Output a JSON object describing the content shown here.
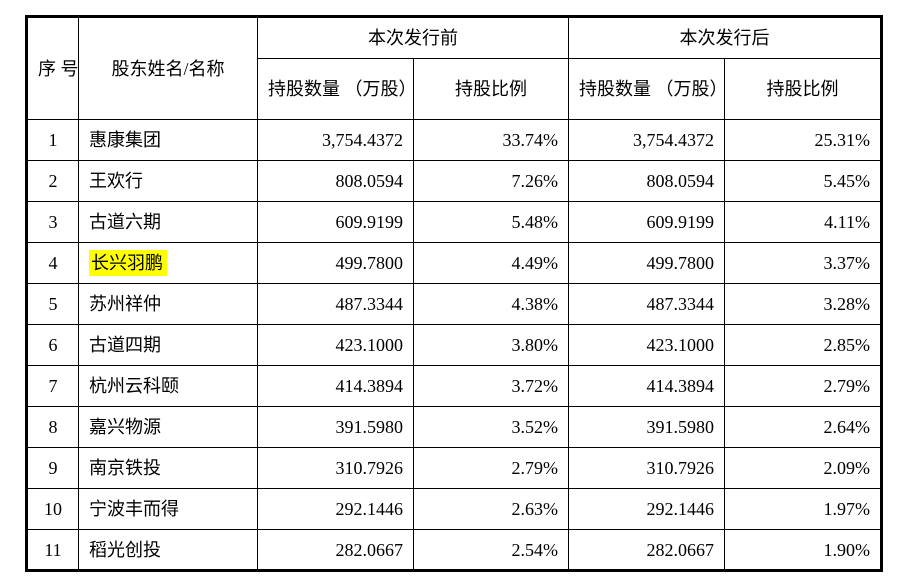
{
  "table": {
    "title_semantic": "shareholding-before-after-issuance",
    "highlight_color": "#ffff00",
    "headers": {
      "serial": "序\n号",
      "shareholder": "股东姓名/名称",
      "group_before": "本次发行前",
      "group_after": "本次发行后",
      "qty": "持股数量\n（万股）",
      "ratio": "持股比例"
    },
    "rows": [
      {
        "no": "1",
        "name": "惠康集团",
        "qty_before": "3,754.4372",
        "ratio_before": "33.74%",
        "qty_after": "3,754.4372",
        "ratio_after": "25.31%",
        "highlight": false
      },
      {
        "no": "2",
        "name": "王欢行",
        "qty_before": "808.0594",
        "ratio_before": "7.26%",
        "qty_after": "808.0594",
        "ratio_after": "5.45%",
        "highlight": false
      },
      {
        "no": "3",
        "name": "古道六期",
        "qty_before": "609.9199",
        "ratio_before": "5.48%",
        "qty_after": "609.9199",
        "ratio_after": "4.11%",
        "highlight": false
      },
      {
        "no": "4",
        "name": "长兴羽鹏",
        "qty_before": "499.7800",
        "ratio_before": "4.49%",
        "qty_after": "499.7800",
        "ratio_after": "3.37%",
        "highlight": true
      },
      {
        "no": "5",
        "name": "苏州祥仲",
        "qty_before": "487.3344",
        "ratio_before": "4.38%",
        "qty_after": "487.3344",
        "ratio_after": "3.28%",
        "highlight": false
      },
      {
        "no": "6",
        "name": "古道四期",
        "qty_before": "423.1000",
        "ratio_before": "3.80%",
        "qty_after": "423.1000",
        "ratio_after": "2.85%",
        "highlight": false
      },
      {
        "no": "7",
        "name": "杭州云科颐",
        "qty_before": "414.3894",
        "ratio_before": "3.72%",
        "qty_after": "414.3894",
        "ratio_after": "2.79%",
        "highlight": false
      },
      {
        "no": "8",
        "name": "嘉兴物源",
        "qty_before": "391.5980",
        "ratio_before": "3.52%",
        "qty_after": "391.5980",
        "ratio_after": "2.64%",
        "highlight": false
      },
      {
        "no": "9",
        "name": "南京铁投",
        "qty_before": "310.7926",
        "ratio_before": "2.79%",
        "qty_after": "310.7926",
        "ratio_after": "2.09%",
        "highlight": false
      },
      {
        "no": "10",
        "name": "宁波丰而得",
        "qty_before": "292.1446",
        "ratio_before": "2.63%",
        "qty_after": "292.1446",
        "ratio_after": "1.97%",
        "highlight": false
      },
      {
        "no": "11",
        "name": "稻光创投",
        "qty_before": "282.0667",
        "ratio_before": "2.54%",
        "qty_after": "282.0667",
        "ratio_after": "1.90%",
        "highlight": false
      }
    ]
  }
}
